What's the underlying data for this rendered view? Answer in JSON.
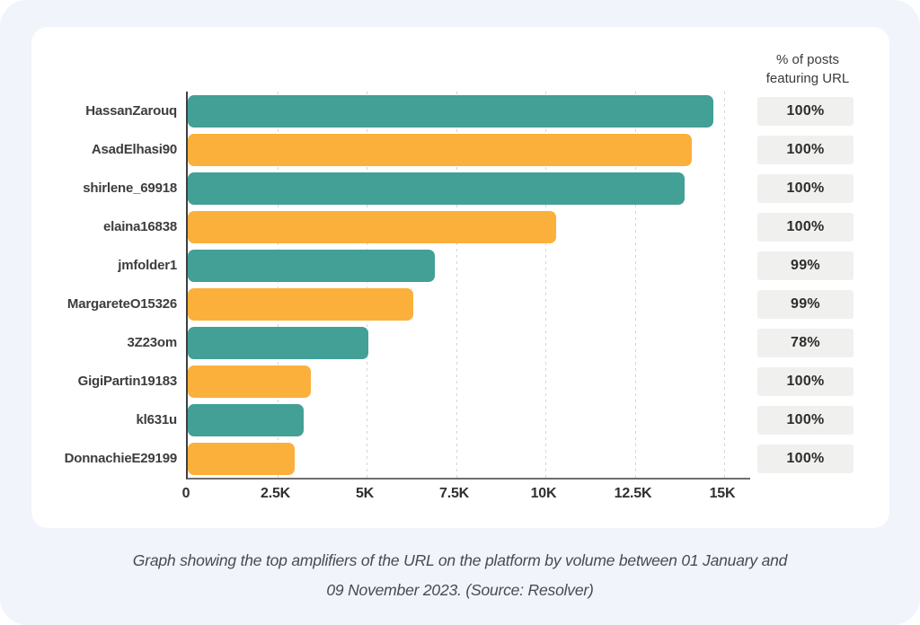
{
  "figure": {
    "percent_header_line1": "% of posts",
    "percent_header_line2": "featuring URL",
    "caption_line1": "Graph showing the top amplifiers of the URL on the platform by volume between 01 January and",
    "caption_line2": "09 November 2023. (Source: Resolver)"
  },
  "colors": {
    "teal": "#42A096",
    "orange": "#FBB03B",
    "badge_background": "#F0F0EF",
    "frame_background": "#F1F4FB",
    "card_background": "#FFFFFF",
    "gridline": "#D5D5D5",
    "axis_vertical": "#3F3F3F",
    "axis_horizontal": "#6E6E6E",
    "label_text": "#3D3D3D",
    "badge_text": "#2D2D2D",
    "caption_text": "#4A4A4F"
  },
  "chart_data": {
    "type": "bar",
    "orientation": "horizontal",
    "title": "",
    "xlabel": "",
    "ylabel": "",
    "xlim": [
      0,
      15000
    ],
    "grid": "vertical-dotted",
    "legend": "none",
    "x_ticks": [
      {
        "label": "0",
        "value": 0
      },
      {
        "label": "2.5K",
        "value": 2500
      },
      {
        "label": "5K",
        "value": 5000
      },
      {
        "label": "7.5K",
        "value": 7500
      },
      {
        "label": "10K",
        "value": 10000
      },
      {
        "label": "12.5K",
        "value": 12500
      },
      {
        "label": "15K",
        "value": 15000
      }
    ],
    "percent_column_header": "% of posts featuring URL",
    "bars": [
      {
        "label": "HassanZarouq",
        "value": 14700,
        "color": "teal",
        "percent": "100%"
      },
      {
        "label": "AsadElhasi90",
        "value": 14100,
        "color": "orange",
        "percent": "100%"
      },
      {
        "label": "shirlene_69918",
        "value": 13900,
        "color": "teal",
        "percent": "100%"
      },
      {
        "label": "elaina16838",
        "value": 10300,
        "color": "orange",
        "percent": "100%"
      },
      {
        "label": "jmfolder1",
        "value": 6900,
        "color": "teal",
        "percent": "99%"
      },
      {
        "label": "MargareteO15326",
        "value": 6300,
        "color": "orange",
        "percent": "99%"
      },
      {
        "label": "3Z23om",
        "value": 5050,
        "color": "teal",
        "percent": "78%"
      },
      {
        "label": "GigiPartin19183",
        "value": 3450,
        "color": "orange",
        "percent": "100%"
      },
      {
        "label": "kl631u",
        "value": 3250,
        "color": "teal",
        "percent": "100%"
      },
      {
        "label": "DonnachieE29199",
        "value": 3000,
        "color": "orange",
        "percent": "100%"
      }
    ]
  }
}
